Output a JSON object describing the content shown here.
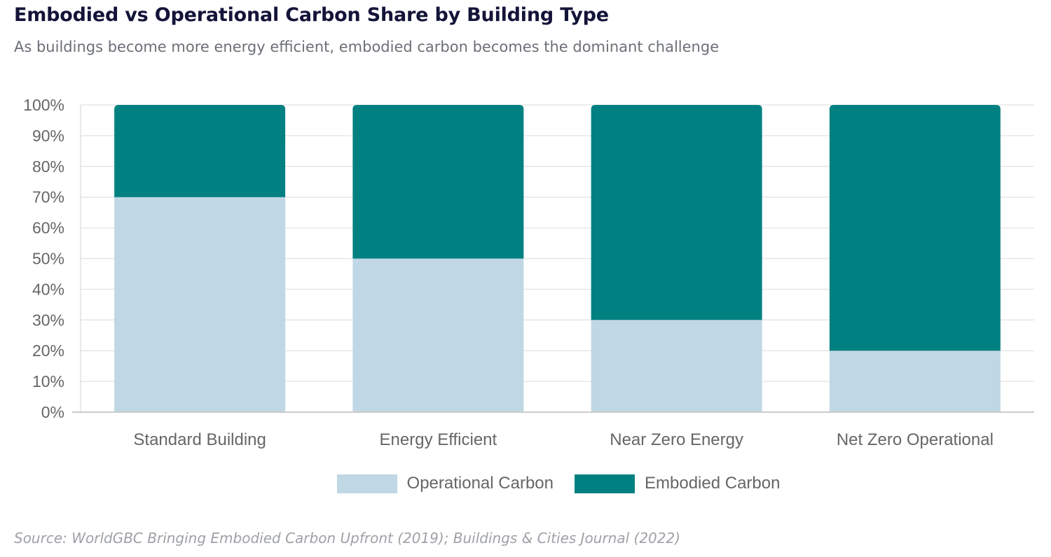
{
  "header": {
    "title": "Embodied vs Operational Carbon Share by Building Type",
    "subtitle": "As buildings become more energy efficient, embodied carbon becomes the dominant challenge"
  },
  "footer": {
    "source": "Source: WorldGBC Bringing Embodied Carbon Upfront (2019); Buildings & Cities Journal (2022)"
  },
  "chart_data": {
    "type": "bar",
    "stacked": true,
    "title": "Embodied vs Operational Carbon Share by Building Type",
    "subtitle": "As buildings become more energy efficient, embodied carbon becomes the dominant challenge",
    "categories": [
      "Standard Building",
      "Energy Efficient",
      "Near Zero Energy",
      "Net Zero Operational"
    ],
    "series": [
      {
        "name": "Operational Carbon",
        "values": [
          70,
          50,
          30,
          20
        ],
        "color": "#c0d7e5"
      },
      {
        "name": "Embodied Carbon",
        "values": [
          30,
          50,
          70,
          80
        ],
        "color": "#008080"
      }
    ],
    "yticks": [
      "0%",
      "10%",
      "20%",
      "30%",
      "40%",
      "50%",
      "60%",
      "70%",
      "80%",
      "90%",
      "100%"
    ],
    "ylim": [
      0,
      100
    ],
    "grid": true,
    "legend_position": "bottom"
  }
}
